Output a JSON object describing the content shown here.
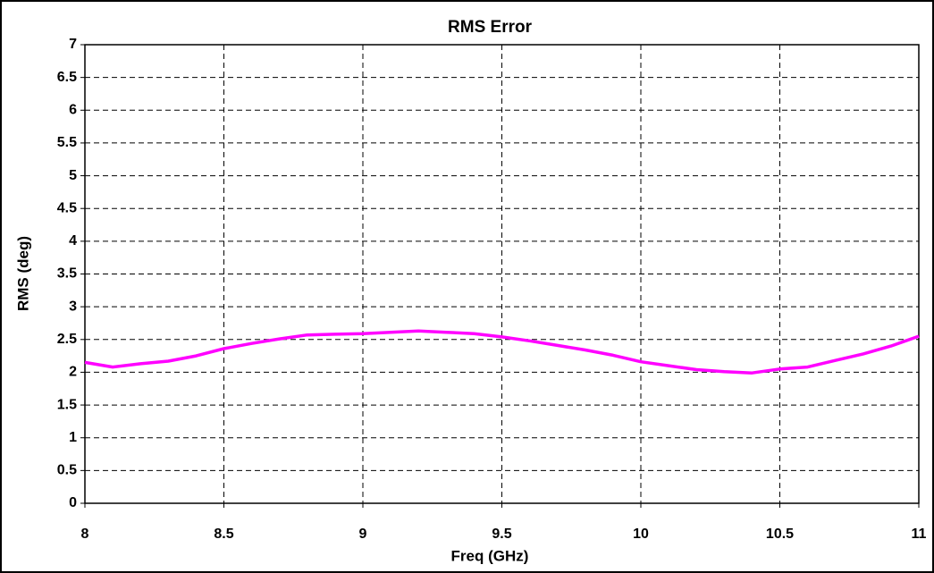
{
  "chart_data": {
    "type": "line",
    "title": "RMS Error",
    "x_label": "Freq (GHz)",
    "y_label": "RMS (deg)",
    "x": [
      8.0,
      8.1,
      8.2,
      8.3,
      8.4,
      8.5,
      8.6,
      8.7,
      8.8,
      8.9,
      9.0,
      9.1,
      9.2,
      9.3,
      9.4,
      9.5,
      9.6,
      9.7,
      9.8,
      9.9,
      10.0,
      10.1,
      10.2,
      10.3,
      10.4,
      10.5,
      10.6,
      10.7,
      10.8,
      10.9,
      11.0
    ],
    "values": [
      2.15,
      2.08,
      2.13,
      2.17,
      2.25,
      2.36,
      2.44,
      2.51,
      2.57,
      2.58,
      2.59,
      2.61,
      2.63,
      2.61,
      2.59,
      2.54,
      2.48,
      2.41,
      2.34,
      2.26,
      2.16,
      2.1,
      2.04,
      2.01,
      1.99,
      2.05,
      2.08,
      2.18,
      2.28,
      2.4,
      2.55
    ],
    "color": "#ff00ff",
    "xlim": [
      8,
      11
    ],
    "xticks": [
      8,
      8.5,
      9,
      9.5,
      10,
      10.5,
      11
    ],
    "ylim": [
      0,
      7
    ],
    "yticks": [
      0,
      0.5,
      1,
      1.5,
      2,
      2.5,
      3,
      3.5,
      4,
      4.5,
      5,
      5.5,
      6,
      6.5,
      7
    ],
    "grid": true
  }
}
